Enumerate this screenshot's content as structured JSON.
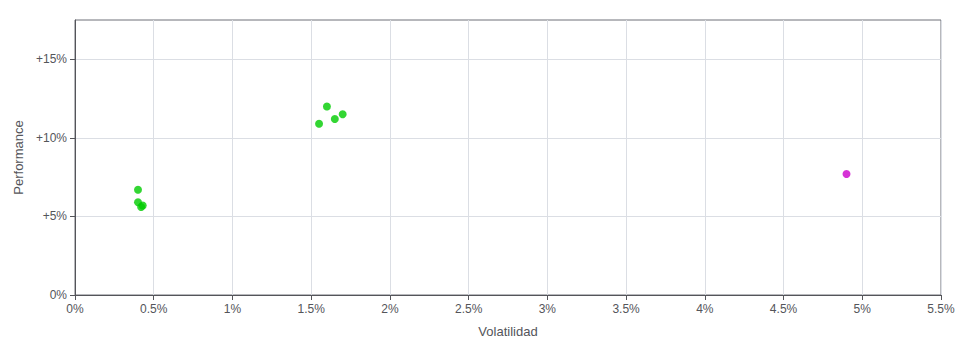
{
  "chart_data": {
    "type": "scatter",
    "xlabel": "Volatilidad",
    "ylabel": "Performance",
    "xlim": [
      0,
      0.055
    ],
    "ylim": [
      0,
      0.175
    ],
    "xticks": [
      {
        "value": 0.0,
        "label": "0%"
      },
      {
        "value": 0.005,
        "label": "0.5%"
      },
      {
        "value": 0.01,
        "label": "1%"
      },
      {
        "value": 0.015,
        "label": "1.5%"
      },
      {
        "value": 0.02,
        "label": "2%"
      },
      {
        "value": 0.025,
        "label": "2.5%"
      },
      {
        "value": 0.03,
        "label": "3%"
      },
      {
        "value": 0.035,
        "label": "3.5%"
      },
      {
        "value": 0.04,
        "label": "4%"
      },
      {
        "value": 0.045,
        "label": "4.5%"
      },
      {
        "value": 0.05,
        "label": "5%"
      },
      {
        "value": 0.055,
        "label": "5.5%"
      }
    ],
    "yticks": [
      {
        "value": 0.0,
        "label": "0%"
      },
      {
        "value": 0.05,
        "label": "+5%"
      },
      {
        "value": 0.1,
        "label": "+10%"
      },
      {
        "value": 0.15,
        "label": "+15%"
      }
    ],
    "grid": true,
    "series": [
      {
        "color": "#00cc00",
        "x": [
          0.016,
          0.017,
          0.0165,
          0.0155,
          0.004,
          0.004,
          0.0043,
          0.0042
        ],
        "values": [
          0.12,
          0.115,
          0.112,
          0.109,
          0.067,
          0.059,
          0.057,
          0.056
        ]
      },
      {
        "color": "#cc00cc",
        "x": [
          0.049
        ],
        "values": [
          0.077
        ]
      }
    ]
  }
}
